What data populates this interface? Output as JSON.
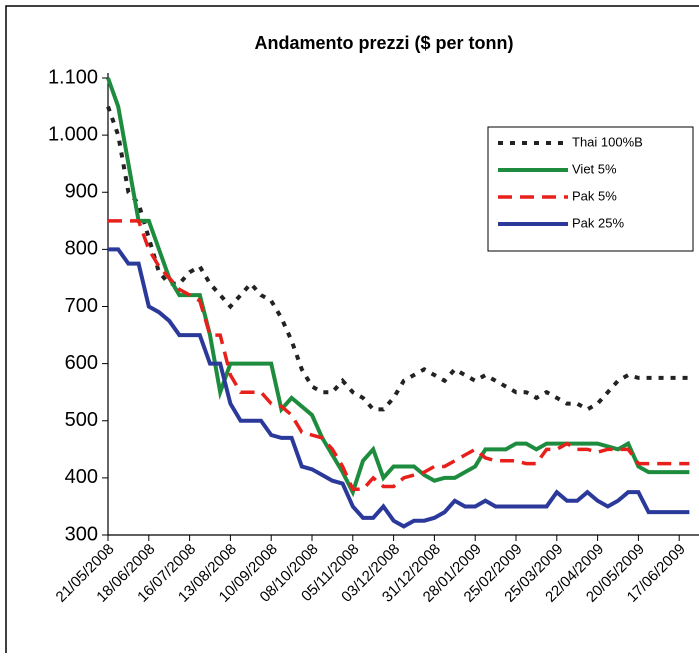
{
  "chart_data": {
    "type": "line",
    "title": "Andamento prezzi ($ per tonn)",
    "categories": [
      "21/05/2008",
      null,
      null,
      null,
      "18/06/2008",
      null,
      null,
      null,
      "16/07/2008",
      null,
      null,
      null,
      "13/08/2008",
      null,
      null,
      null,
      "10/09/2008",
      null,
      null,
      null,
      "08/10/2008",
      null,
      null,
      null,
      "05/11/2008",
      null,
      null,
      null,
      "03/12/2008",
      null,
      null,
      null,
      "31/12/2008",
      null,
      null,
      null,
      "28/01/2009",
      null,
      null,
      null,
      "25/02/2009",
      null,
      null,
      null,
      "25/03/2009",
      null,
      null,
      null,
      "22/04/2009",
      null,
      null,
      null,
      "20/05/2009",
      null,
      null,
      null,
      "17/06/2009",
      null
    ],
    "series": [
      {
        "name": "Thai 100%B",
        "color": "#222222",
        "line_style": "dotted",
        "values": [
          1050,
          1000,
          900,
          880,
          820,
          760,
          740,
          740,
          760,
          770,
          740,
          720,
          700,
          720,
          740,
          720,
          710,
          680,
          640,
          590,
          560,
          550,
          550,
          570,
          550,
          540,
          520,
          520,
          540,
          570,
          580,
          590,
          580,
          570,
          590,
          580,
          570,
          580,
          570,
          560,
          550,
          550,
          540,
          550,
          540,
          530,
          530,
          520,
          530,
          550,
          570,
          580,
          575,
          575,
          575,
          575,
          575,
          575
        ]
      },
      {
        "name": "Viet 5%",
        "color": "#1e8c3e",
        "line_style": "solid",
        "values": [
          1100,
          1050,
          950,
          850,
          850,
          800,
          750,
          720,
          720,
          720,
          650,
          550,
          600,
          600,
          600,
          600,
          600,
          520,
          540,
          525,
          510,
          470,
          440,
          410,
          375,
          430,
          450,
          400,
          420,
          420,
          420,
          405,
          395,
          400,
          400,
          410,
          420,
          450,
          450,
          450,
          460,
          460,
          450,
          460,
          460,
          460,
          460,
          460,
          460,
          455,
          450,
          460,
          420,
          410,
          410,
          410,
          410,
          410
        ]
      },
      {
        "name": "Pak 5%",
        "color": "#e8201c",
        "line_style": "dashed",
        "values": [
          850,
          850,
          850,
          850,
          800,
          770,
          750,
          730,
          720,
          710,
          650,
          650,
          580,
          550,
          550,
          550,
          530,
          525,
          510,
          480,
          475,
          470,
          450,
          420,
          380,
          380,
          400,
          385,
          385,
          400,
          405,
          410,
          420,
          420,
          430,
          440,
          450,
          435,
          430,
          430,
          430,
          425,
          425,
          450,
          450,
          460,
          450,
          450,
          445,
          450,
          450,
          450,
          425,
          425,
          425,
          425,
          425,
          425
        ]
      },
      {
        "name": "Pak 25%",
        "color": "#2b3a9a",
        "line_style": "solid",
        "values": [
          800,
          800,
          775,
          775,
          700,
          690,
          675,
          650,
          650,
          650,
          600,
          600,
          530,
          500,
          500,
          500,
          475,
          470,
          470,
          420,
          415,
          405,
          395,
          390,
          350,
          330,
          330,
          350,
          325,
          315,
          325,
          325,
          330,
          340,
          360,
          350,
          350,
          360,
          350,
          350,
          350,
          350,
          350,
          350,
          375,
          360,
          360,
          375,
          360,
          350,
          360,
          375,
          375,
          340,
          340,
          340,
          340,
          340
        ]
      }
    ],
    "ylim": [
      300,
      1100
    ],
    "yticks": [
      300,
      400,
      500,
      600,
      700,
      800,
      900,
      {
        "value": 1000,
        "label": "1.000"
      },
      {
        "value": 1100,
        "label": "1.100"
      }
    ],
    "grid": false,
    "legend": "upper right"
  }
}
